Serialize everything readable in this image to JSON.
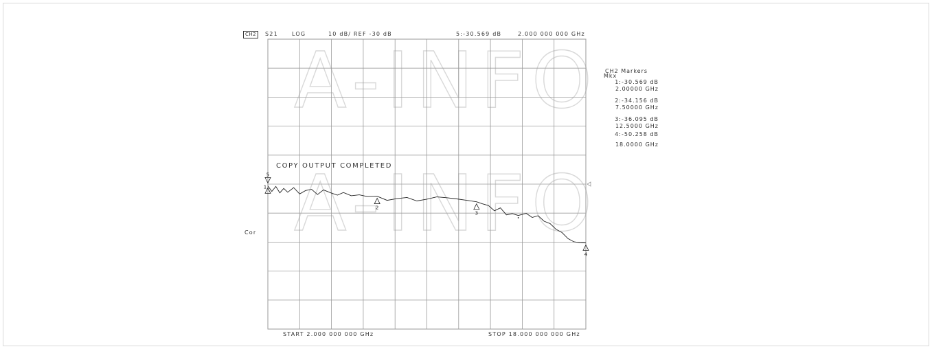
{
  "header": {
    "channel": "CH2",
    "param": "S21",
    "format": "LOG",
    "scale": "10 dB/ REF -30 dB",
    "active_marker": "5:-30.569 dB",
    "active_freq": "2.000 000 000 GHz"
  },
  "side_label": "Cor",
  "status_message": "COPY OUTPUT COMPLETED",
  "footer": {
    "start": "START 2.000 000 000 GHz",
    "stop": "STOP 18.000 000 000 GHz"
  },
  "marker_panel": {
    "title": "CH2 Markers",
    "subtitle": "Mkx",
    "markers": [
      {
        "value": "1:-30.569 dB",
        "freq": "2.00000 GHz"
      },
      {
        "value": "2:-34.156 dB",
        "freq": "7.50000 GHz"
      },
      {
        "value": "3:-36.095 dB",
        "freq": "12.5000 GHz"
      },
      {
        "value": "4:-50.258 dB",
        "freq": "18.0000 GHz"
      }
    ]
  },
  "watermark": "A-INFO",
  "colors": {
    "grid": "#9a9a9a",
    "trace": "#222222",
    "watermark": "#d9d9d9"
  },
  "chart_data": {
    "type": "line",
    "title": "S21",
    "xlabel": "",
    "ylabel": "",
    "xunit": "GHz",
    "yunit": "dB",
    "xlim": [
      2,
      18
    ],
    "ylim": [
      -80,
      20
    ],
    "grid": true,
    "x_divisions": 10,
    "y_divisions": 10,
    "x": [
      2.0,
      2.2,
      2.4,
      2.6,
      2.8,
      3.0,
      3.3,
      3.6,
      3.9,
      4.2,
      4.5,
      4.8,
      5.2,
      5.5,
      5.8,
      6.2,
      6.6,
      7.0,
      7.5,
      8.0,
      8.5,
      9.0,
      9.5,
      10.0,
      10.5,
      11.0,
      11.5,
      12.0,
      12.5,
      12.8,
      13.1,
      13.4,
      13.7,
      14.0,
      14.3,
      14.6,
      15.0,
      15.3,
      15.6,
      15.9,
      16.2,
      16.5,
      16.8,
      17.1,
      17.4,
      17.7,
      18.0
    ],
    "y": [
      -30.6,
      -32.5,
      -30.8,
      -33.0,
      -31.5,
      -32.8,
      -31.2,
      -33.4,
      -32.2,
      -31.8,
      -33.6,
      -32.0,
      -33.1,
      -33.8,
      -32.9,
      -34.0,
      -33.7,
      -34.3,
      -34.2,
      -35.6,
      -35.0,
      -34.6,
      -35.8,
      -35.2,
      -34.4,
      -34.7,
      -35.1,
      -35.6,
      -36.1,
      -36.8,
      -37.4,
      -39.2,
      -38.2,
      -40.6,
      -40.2,
      -40.8,
      -40.1,
      -41.5,
      -40.9,
      -42.8,
      -43.6,
      -45.6,
      -46.7,
      -48.8,
      -49.9,
      -50.2,
      -50.3
    ],
    "markers": [
      {
        "label": "1",
        "x": 2.0,
        "y": -30.569
      },
      {
        "label": "2",
        "x": 7.5,
        "y": -34.156
      },
      {
        "label": "3",
        "x": 12.5,
        "y": -36.095
      },
      {
        "label": "4",
        "x": 18.0,
        "y": -50.258
      },
      {
        "label": "5",
        "x": 2.0,
        "y": -30.569
      }
    ],
    "reference_level": -30
  }
}
